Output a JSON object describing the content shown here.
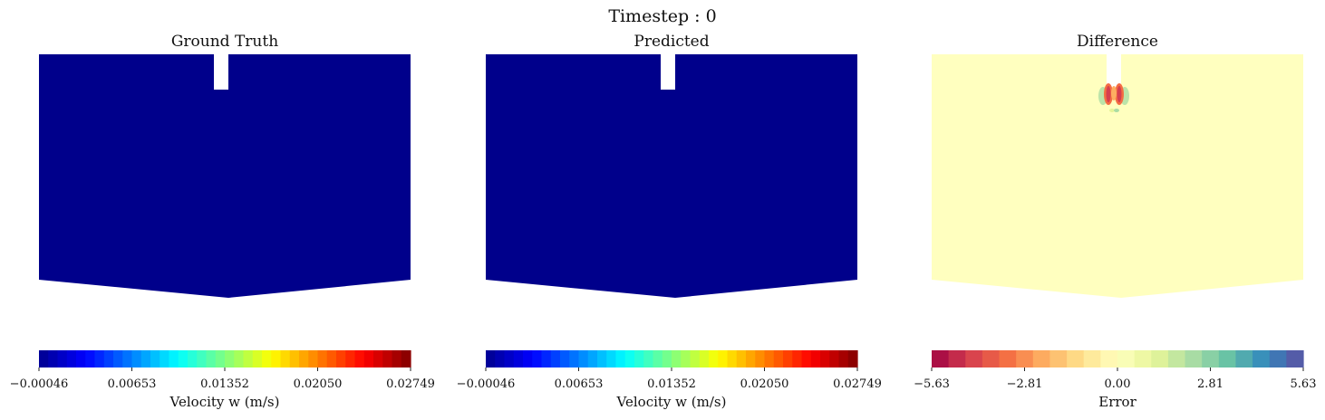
{
  "figure": {
    "title": "Timestep : 0"
  },
  "chart_data": [
    {
      "type": "heatmap",
      "title": "Ground Truth",
      "field_fill": "#00008b",
      "field_description": "uniform deep blue field (minimum of colormap) with white inlet slot at top center",
      "colormap": "jet",
      "colorbar": {
        "label": "Velocity w (m/s)",
        "ticks": [
          "−0.00046",
          "0.00653",
          "0.01352",
          "0.02050",
          "0.02749"
        ],
        "range": [
          -0.00046,
          0.02749
        ],
        "colors": [
          "#00008f",
          "#0000ff",
          "#0080ff",
          "#00ffff",
          "#80ff80",
          "#ffff00",
          "#ff8000",
          "#ff0000",
          "#800000"
        ]
      }
    },
    {
      "type": "heatmap",
      "title": "Predicted",
      "field_fill": "#00008b",
      "field_description": "uniform deep blue field (minimum of colormap) with white inlet slot at top center",
      "colormap": "jet",
      "colorbar": {
        "label": "Velocity w (m/s)",
        "ticks": [
          "−0.00046",
          "0.00653",
          "0.01352",
          "0.02050",
          "0.02749"
        ],
        "range": [
          -0.00046,
          0.02749
        ],
        "colors": [
          "#00008f",
          "#0000ff",
          "#0080ff",
          "#00ffff",
          "#80ff80",
          "#ffff00",
          "#ff8000",
          "#ff0000",
          "#800000"
        ]
      }
    },
    {
      "type": "heatmap",
      "title": "Difference",
      "field_fill": "#ffffbf",
      "field_description": "near-zero error (pale yellow) everywhere, small red/green error plume just below the inlet slot",
      "colormap": "Spectral",
      "colorbar": {
        "label": "Error",
        "ticks": [
          "−5.63",
          "−2.81",
          "0.00",
          "2.81",
          "5.63"
        ],
        "range": [
          -5.63,
          5.63
        ],
        "colors": [
          "#9e0142",
          "#d53e4f",
          "#f46d43",
          "#fdae61",
          "#fee08b",
          "#ffffbf",
          "#e6f598",
          "#abdda4",
          "#66c2a5",
          "#3288bd",
          "#5e4fa2"
        ]
      }
    }
  ]
}
